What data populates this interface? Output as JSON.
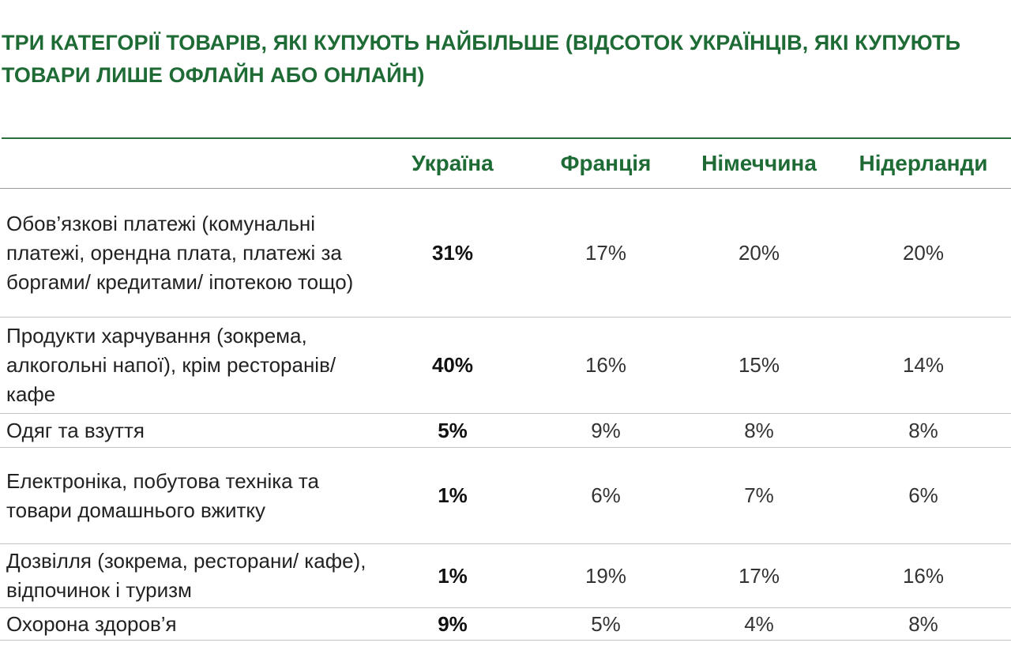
{
  "title": "ТРИ КАТЕГОРІЇ ТОВАРІВ, ЯКІ КУПУЮТЬ НАЙБІЛЬШЕ (ВІДСОТОК УКРАЇНЦІВ, ЯКІ КУПУЮТЬ ТОВАРИ ЛИШЕ ОФЛАЙН АБО ОНЛАЙН)",
  "colors": {
    "accent_green": "#1e6b35",
    "rule_green": "#2a6f3e"
  },
  "table": {
    "headers": [
      "",
      "Україна",
      "Франція",
      "Німеччина",
      "Нідерланди"
    ],
    "rows": [
      {
        "category": "Обов’язкові платежі (комунальні платежі, орендна плата, платежі за боргами/ кредитами/ іпотекою тощо)",
        "values": [
          "31%",
          "17%",
          "20%",
          "20%"
        ]
      },
      {
        "category": "Продукти харчування (зокрема, алкогольні напої), крім ресторанів/кафе",
        "values": [
          "40%",
          "16%",
          "15%",
          "14%"
        ]
      },
      {
        "category": "Одяг та взуття",
        "values": [
          "5%",
          "9%",
          "8%",
          "8%"
        ]
      },
      {
        "category": "Електроніка, побутова техніка та товари домашнього вжитку",
        "values": [
          "1%",
          "6%",
          "7%",
          "6%"
        ]
      },
      {
        "category": "Дозвілля (зокрема, ресторани/ кафе), відпочинок і туризм",
        "values": [
          "1%",
          "19%",
          "17%",
          "16%"
        ]
      },
      {
        "category": "Охорона здоров’я",
        "values": [
          "9%",
          "5%",
          "4%",
          "8%"
        ]
      }
    ]
  }
}
